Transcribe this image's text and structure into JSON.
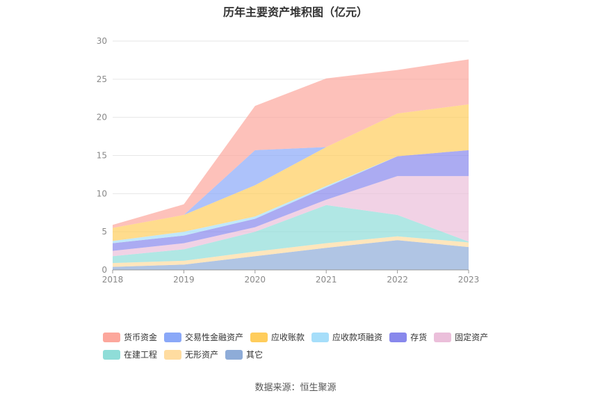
{
  "chart_data": {
    "type": "area",
    "stacked": true,
    "title": "历年主要资产堆积图（亿元）",
    "x": [
      "2018",
      "2019",
      "2020",
      "2021",
      "2022",
      "2023"
    ],
    "ylim": [
      0,
      30
    ],
    "yticks": [
      "0",
      "5",
      "10",
      "15",
      "20",
      "25",
      "30"
    ],
    "grid": true,
    "legend_position": "bottom",
    "series": [
      {
        "name": "其它",
        "color": "#8eacd8",
        "values": [
          0.4,
          0.7,
          1.8,
          2.9,
          3.9,
          3.0
        ]
      },
      {
        "name": "无形资产",
        "color": "#ffdca0",
        "values": [
          0.5,
          0.5,
          0.6,
          0.6,
          0.5,
          0.6
        ]
      },
      {
        "name": "在建工程",
        "color": "#8fddd8",
        "values": [
          0.9,
          1.5,
          2.6,
          5.0,
          2.8,
          0.1
        ]
      },
      {
        "name": "固定资产",
        "color": "#ebbfda",
        "values": [
          0.7,
          0.8,
          0.6,
          0.7,
          5.1,
          8.6
        ]
      },
      {
        "name": "存货",
        "color": "#8888ec",
        "values": [
          1.0,
          1.0,
          1.1,
          1.6,
          2.6,
          3.4
        ]
      },
      {
        "name": "应收款项融资",
        "color": "#a6defa",
        "values": [
          0.3,
          0.5,
          0.3,
          0.2,
          0.0,
          0.0
        ]
      },
      {
        "name": "应收账款",
        "color": "#ffcd5c",
        "values": [
          1.7,
          2.2,
          4.1,
          5.1,
          5.6,
          6.0
        ]
      },
      {
        "name": "交易性金融资产",
        "color": "#8aa8f8",
        "values": [
          0.0,
          0.0,
          4.6,
          0.0,
          0.0,
          0.0
        ]
      },
      {
        "name": "货币资金",
        "color": "#fca79c",
        "values": [
          0.4,
          1.4,
          5.8,
          9.0,
          5.7,
          5.9
        ]
      }
    ]
  },
  "legend": {
    "row1": [
      "货币资金",
      "交易性金融资产",
      "应收账款",
      "应收款项融资",
      "存货",
      "固定资产"
    ],
    "row2": [
      "在建工程",
      "无形资产",
      "其它"
    ]
  },
  "footer": {
    "source": "数据来源：恒生聚源"
  }
}
